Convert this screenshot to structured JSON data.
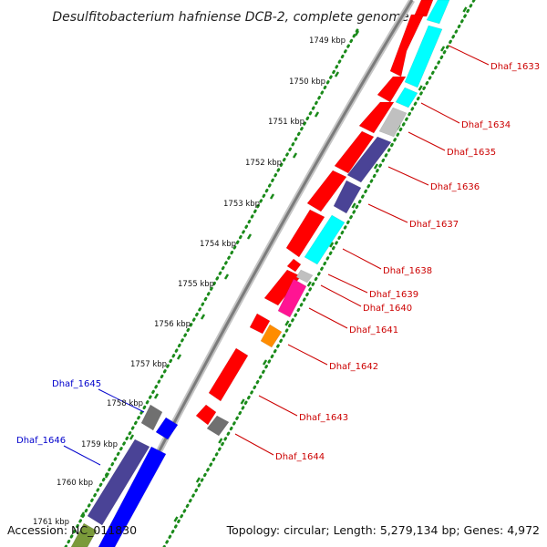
{
  "title": "Desulfitobacterium hafniense DCB-2, complete genome",
  "footer": {
    "accession": "Accession: NC_011830",
    "stats": "Topology: circular; Length: 5,279,134 bp; Genes: 4,972"
  },
  "kbp_labels": [
    "1749 kbp",
    "1750 kbp",
    "1751 kbp",
    "1752 kbp",
    "1753 kbp",
    "1754 kbp",
    "1755 kbp",
    "1756 kbp",
    "1757 kbp",
    "1758 kbp",
    "1759 kbp",
    "1760 kbp",
    "1761 kbp"
  ],
  "genes_right": [
    "Dhaf_1633",
    "Dhaf_1634",
    "Dhaf_1635",
    "Dhaf_1636",
    "Dhaf_1637",
    "Dhaf_1638",
    "Dhaf_1639",
    "Dhaf_1640",
    "Dhaf_1641",
    "Dhaf_1642",
    "Dhaf_1643",
    "Dhaf_1644"
  ],
  "genes_left": [
    "Dhaf_1645",
    "Dhaf_1646"
  ],
  "colors": {
    "red": "#ff0000",
    "cyan": "#00ffff",
    "gray": "#c0c0c0",
    "darkgray": "#707070",
    "slate": "#4a4396",
    "blue": "#0000ff",
    "magenta": "#ff1493",
    "orange": "#ff8c00",
    "olive": "#7a9a3a",
    "dots": "#1a8a1a"
  }
}
